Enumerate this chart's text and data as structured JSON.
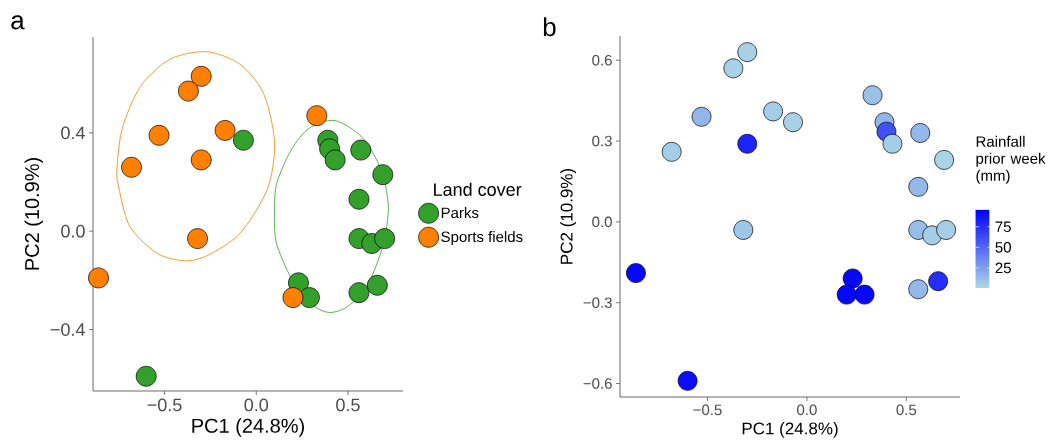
{
  "chart_data": [
    {
      "type": "scatter",
      "title": "a",
      "xlabel": "PC1 (24.8%)",
      "ylabel": "PC2 (10.9%)",
      "legend_title": "Land cover",
      "legend": "right",
      "marker": "circle",
      "xlim": [
        -0.89,
        0.8
      ],
      "ylim": [
        -0.65,
        0.79
      ],
      "xticks": [
        {
          "value": -0.5,
          "label": "−0.5"
        },
        {
          "value": 0,
          "label": "0.0"
        },
        {
          "value": 0.5,
          "label": "0.5"
        }
      ],
      "yticks": [
        {
          "value": -0.4,
          "label": "−0.4"
        },
        {
          "value": 0,
          "label": "0.0"
        },
        {
          "value": 0.4,
          "label": "0.4"
        }
      ],
      "series": [
        {
          "name": "Parks",
          "color": "#33a02c",
          "x": [
            -0.07,
            0.39,
            0.4,
            0.43,
            0.57,
            0.69,
            0.56,
            0.56,
            0.63,
            0.7,
            0.23,
            0.29,
            0.56,
            0.66,
            -0.6
          ],
          "values": [
            0.37,
            0.37,
            0.335,
            0.29,
            0.33,
            0.23,
            0.13,
            -0.03,
            -0.05,
            -0.03,
            -0.21,
            -0.27,
            -0.25,
            -0.22,
            -0.59
          ]
        },
        {
          "name": "Sports fields",
          "color": "#ff7f00",
          "x": [
            -0.3,
            -0.37,
            -0.53,
            -0.68,
            -0.17,
            -0.3,
            -0.32,
            -0.86,
            0.33,
            0.2
          ],
          "values": [
            0.63,
            0.57,
            0.39,
            0.26,
            0.41,
            0.29,
            -0.03,
            -0.19,
            0.47,
            -0.27
          ]
        }
      ]
    },
    {
      "type": "scatter",
      "title": "b",
      "xlabel": "PC1 (24.8%)",
      "ylabel": "PC2 (10.9%)",
      "clabel": "Rainfall prior week (mm)",
      "marker": "circle",
      "xlim": [
        -0.94,
        0.77
      ],
      "ylim": [
        -0.65,
        0.69
      ],
      "xticks": [
        {
          "value": -0.5,
          "label": "−0.5"
        },
        {
          "value": 0,
          "label": "0.0"
        },
        {
          "value": 0.5,
          "label": "0.5"
        }
      ],
      "yticks": [
        {
          "value": -0.6,
          "label": "−0.6"
        },
        {
          "value": -0.3,
          "label": "−0.3"
        },
        {
          "value": 0,
          "label": "0.0"
        },
        {
          "value": 0.3,
          "label": "0.3"
        },
        {
          "value": 0.6,
          "label": "0.6"
        }
      ],
      "clim": [
        0,
        96
      ],
      "cticks": [
        25,
        50,
        75
      ],
      "x": [
        -0.3,
        -0.37,
        -0.53,
        -0.68,
        -0.3,
        -0.17,
        -0.07,
        -0.32,
        -0.86,
        -0.6,
        0.33,
        0.39,
        0.4,
        0.43,
        0.57,
        0.69,
        0.56,
        0.56,
        0.63,
        0.7,
        0.56,
        0.66,
        0.23,
        0.2,
        0.29
      ],
      "values": [
        0.63,
        0.57,
        0.39,
        0.26,
        0.29,
        0.41,
        0.37,
        -0.03,
        -0.19,
        -0.59,
        0.47,
        0.37,
        0.335,
        0.29,
        0.33,
        0.23,
        0.13,
        -0.03,
        -0.05,
        -0.03,
        -0.25,
        -0.22,
        -0.21,
        -0.27,
        -0.27
      ],
      "cvalues": [
        3,
        3,
        15,
        5,
        80,
        5,
        3,
        8,
        92,
        90,
        10,
        15,
        60,
        5,
        14,
        2,
        14,
        12,
        5,
        4,
        14,
        75,
        92,
        92,
        92
      ]
    }
  ]
}
